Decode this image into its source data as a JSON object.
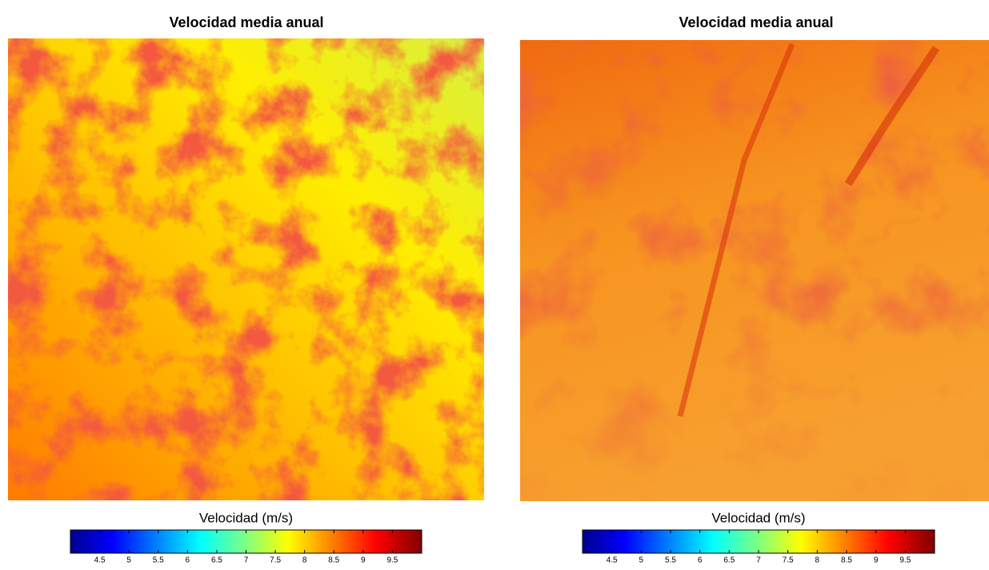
{
  "panels": [
    {
      "title": "Velocidad media anual",
      "colorbar": {
        "label": "Velocidad (m/s)",
        "lim": [
          4,
          10
        ],
        "ticks": [
          4.5,
          5,
          5.5,
          6,
          6.5,
          7,
          7.5,
          8,
          8.5,
          9,
          9.5
        ]
      }
    },
    {
      "title": "Velocidad media anual",
      "colorbar": {
        "label": "Velocidad (m/s)",
        "lim": [
          4,
          10
        ],
        "ticks": [
          4.5,
          5,
          5.5,
          6,
          6.5,
          7,
          7.5,
          8,
          8.5,
          9,
          9.5
        ]
      }
    }
  ]
}
